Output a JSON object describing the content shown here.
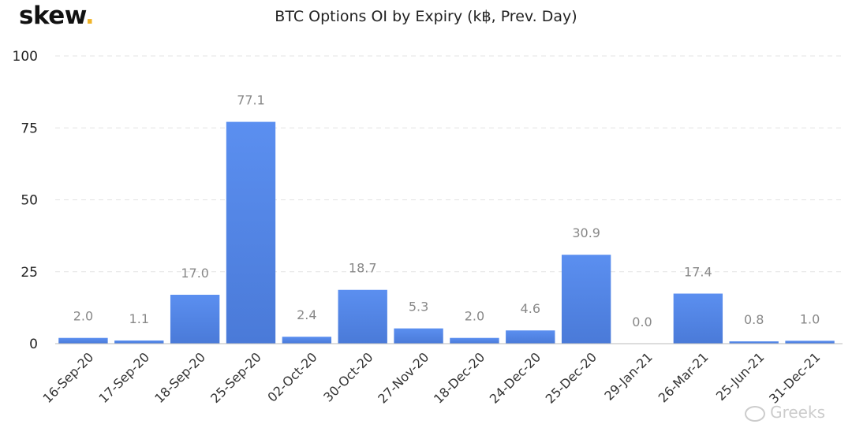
{
  "brand": {
    "logo_text": "skew",
    "logo_dot": "."
  },
  "chart_data": {
    "type": "bar",
    "title": "BTC Options OI by Expiry (k฿, Prev. Day)",
    "categories": [
      "16-Sep-20",
      "17-Sep-20",
      "18-Sep-20",
      "25-Sep-20",
      "02-Oct-20",
      "30-Oct-20",
      "27-Nov-20",
      "18-Dec-20",
      "24-Dec-20",
      "25-Dec-20",
      "29-Jan-21",
      "26-Mar-21",
      "25-Jun-21",
      "31-Dec-21"
    ],
    "values": [
      2.0,
      1.1,
      17.0,
      77.1,
      2.4,
      18.7,
      5.3,
      2.0,
      4.6,
      30.9,
      0.0,
      17.4,
      0.8,
      1.0
    ],
    "data_labels": [
      "2.0",
      "1.1",
      "17.0",
      "77.1",
      "2.4",
      "18.7",
      "5.3",
      "2.0",
      "4.6",
      "30.9",
      "0.0",
      "17.4",
      "0.8",
      "1.0"
    ],
    "yticks": [
      0,
      25,
      50,
      75,
      100
    ],
    "ylim": [
      0,
      100
    ],
    "grid": true,
    "bar_color_top": "#5b8ff0",
    "bar_color_bottom": "#4a7ad8"
  },
  "watermark": {
    "text": "Greeks",
    "icon": "wechat-icon"
  }
}
